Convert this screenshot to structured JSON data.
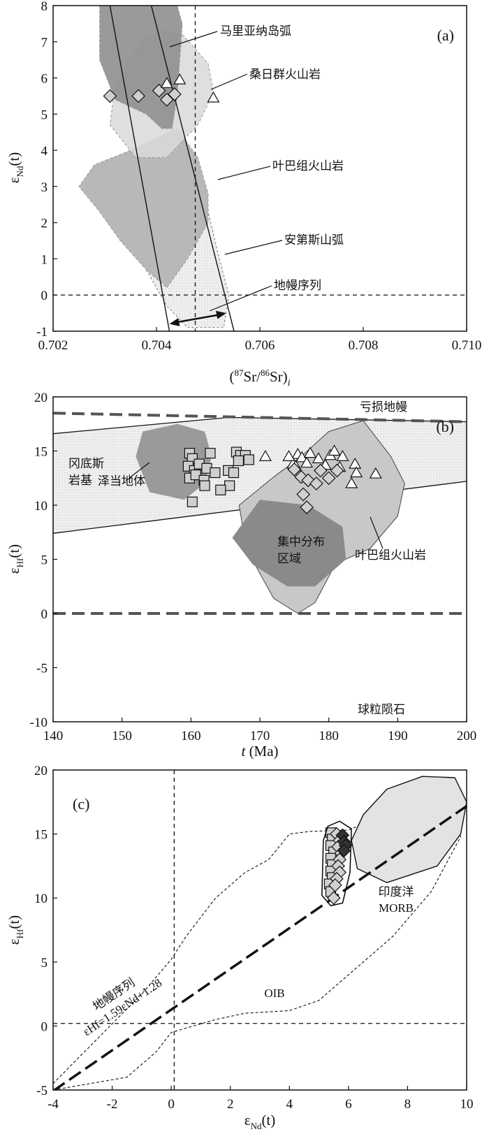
{
  "chart_data": [
    {
      "id": "a",
      "type": "scatter",
      "panel_label": "(a)",
      "xlim": [
        0.702,
        0.71
      ],
      "ylim": [
        -1,
        8
      ],
      "xticks": [
        0.702,
        0.704,
        0.706,
        0.708,
        0.71
      ],
      "yticks": [
        -1,
        0,
        1,
        2,
        3,
        4,
        5,
        6,
        7,
        8
      ],
      "xtick_labels": [
        "0.702",
        "0.704",
        "0.706",
        "0.708",
        "0.710"
      ],
      "ytick_labels": [
        "-1",
        "0",
        "1",
        "2",
        "3",
        "4",
        "5",
        "6",
        "7",
        "8"
      ],
      "xlabel": {
        "open": "(",
        "sup1": "87",
        "mid": "Sr/",
        "sup2": "86",
        "close": "Sr)",
        "sub": "i"
      },
      "ylabel": {
        "main": "ε",
        "sub": "Nd",
        "tail": "(t)"
      },
      "reference_lines": {
        "y": 0,
        "x": 0.70475
      },
      "mantle_array": {
        "line1": [
          [
            0.70425,
            -1
          ],
          [
            0.7031,
            8
          ]
        ],
        "line2": [
          [
            0.7055,
            -1
          ],
          [
            0.7039,
            8
          ]
        ],
        "arrow": [
          [
            0.70425,
            -0.8
          ],
          [
            0.70535,
            -0.5
          ]
        ]
      },
      "fields": [
        {
          "name": "马里亚纳岛弧",
          "color": "#8f8f8f",
          "polygon": [
            [
              0.7029,
              8
            ],
            [
              0.7044,
              8
            ],
            [
              0.7045,
              7.5
            ],
            [
              0.7044,
              5.5
            ],
            [
              0.7043,
              4.6
            ],
            [
              0.7041,
              4.6
            ],
            [
              0.7038,
              5.0
            ],
            [
              0.7032,
              5.4
            ],
            [
              0.7029,
              6.5
            ]
          ]
        },
        {
          "name": "桑日群火山岩",
          "color": "#d9d9d9",
          "polygon": [
            [
              0.7037,
              7.0
            ],
            [
              0.7041,
              7.3
            ],
            [
              0.7045,
              7.2
            ],
            [
              0.705,
              6.4
            ],
            [
              0.7051,
              5.6
            ],
            [
              0.7048,
              4.7
            ],
            [
              0.7042,
              3.8
            ],
            [
              0.7036,
              3.8
            ],
            [
              0.7031,
              4.7
            ],
            [
              0.7032,
              5.8
            ]
          ]
        },
        {
          "name": "叶巴组火山岩",
          "color": "#b8b8b8",
          "polygon": [
            [
              0.7044,
              4.6
            ],
            [
              0.7048,
              3.8
            ],
            [
              0.705,
              2.8
            ],
            [
              0.705,
              2.0
            ],
            [
              0.7046,
              1.0
            ],
            [
              0.7042,
              0.2
            ],
            [
              0.7038,
              0.7
            ],
            [
              0.7033,
              1.5
            ],
            [
              0.7029,
              2.3
            ],
            [
              0.7025,
              3.0
            ],
            [
              0.7028,
              3.6
            ],
            [
              0.7035,
              4.0
            ],
            [
              0.7041,
              4.4
            ]
          ]
        },
        {
          "name": "安第斯山弧",
          "color": "#ebebeb",
          "polygon": [
            [
              0.7043,
              5.2
            ],
            [
              0.7048,
              3.5
            ],
            [
              0.7052,
              1.1
            ],
            [
              0.7054,
              0
            ],
            [
              0.7053,
              -0.9
            ],
            [
              0.7046,
              -0.9
            ],
            [
              0.7042,
              -0.3
            ],
            [
              0.7038,
              0.7
            ],
            [
              0.7038,
              1.7
            ],
            [
              0.704,
              3.5
            ]
          ]
        }
      ],
      "series": [
        {
          "name": "",
          "marker": "diamond",
          "points": [
            [
              0.7031,
              5.5
            ],
            [
              0.70365,
              5.5
            ],
            [
              0.70405,
              5.65
            ],
            [
              0.7042,
              5.4
            ],
            [
              0.70435,
              5.55
            ]
          ]
        },
        {
          "name": "",
          "marker": "triangle",
          "points": [
            [
              0.7042,
              5.85
            ],
            [
              0.70445,
              5.95
            ],
            [
              0.7051,
              5.45
            ]
          ]
        }
      ],
      "annotations": [
        "马里亚纳岛弧",
        "桑日群火山岩",
        "叶巴组火山岩",
        "安第斯山弧",
        "地幔序列"
      ]
    },
    {
      "id": "b",
      "type": "scatter",
      "panel_label": "(b)",
      "xlim": [
        140,
        200
      ],
      "ylim": [
        -10,
        20
      ],
      "xticks": [
        140,
        150,
        160,
        170,
        180,
        190,
        200
      ],
      "yticks": [
        -10,
        -5,
        0,
        5,
        10,
        15,
        20
      ],
      "xtick_labels": [
        "140",
        "150",
        "160",
        "170",
        "180",
        "190",
        "200"
      ],
      "ytick_labels": [
        "-10",
        "-5",
        "0",
        "5",
        "10",
        "15",
        "20"
      ],
      "xlabel": {
        "main": "t",
        "tail": " (Ma)"
      },
      "ylabel": {
        "main": "ε",
        "sub": "Hf",
        "tail": "(t)"
      },
      "reference_lines": {
        "depleted_mantle": [
          [
            140,
            18.5
          ],
          [
            200,
            17.7
          ]
        ],
        "chondrite": 0
      },
      "envelope": [
        [
          140,
          16.6
        ],
        [
          165.5,
          18.1
        ],
        [
          200,
          17.7
        ],
        [
          200,
          12.2
        ],
        [
          140,
          7.4
        ]
      ],
      "fields": [
        {
          "name": "泽当地体",
          "color": "#9a9a9a",
          "polygon": [
            [
              152,
              14.5
            ],
            [
              153,
              16.8
            ],
            [
              158,
              17.5
            ],
            [
              162,
              16.8
            ],
            [
              163,
              14.5
            ],
            [
              162,
              12.0
            ],
            [
              159,
              10.5
            ],
            [
              154,
              11.2
            ]
          ]
        },
        {
          "name": "叶巴组火山岩",
          "color": "#c8c8c8",
          "polygon": [
            [
              185,
              17.8
            ],
            [
              189,
              14.5
            ],
            [
              191,
              12
            ],
            [
              190,
              9
            ],
            [
              186,
              6
            ],
            [
              181,
              4.6
            ],
            [
              178,
              1
            ],
            [
              175.5,
              0
            ],
            [
              172,
              1.4
            ],
            [
              168,
              6
            ],
            [
              167,
              10
            ],
            [
              172,
              12.6
            ],
            [
              176,
              14.5
            ],
            [
              180,
              16.8
            ]
          ]
        },
        {
          "name": "集中分布区域",
          "color": "#8a8a8a",
          "polygon": [
            [
              170,
              10.5
            ],
            [
              177,
              10
            ],
            [
              182,
              8
            ],
            [
              182.5,
              5
            ],
            [
              178,
              2.5
            ],
            [
              174,
              2.5
            ],
            [
              169,
              4.5
            ],
            [
              166,
              7
            ]
          ]
        }
      ],
      "series": [
        {
          "name": "",
          "marker": "square",
          "points": [
            [
              159.8,
              14.8
            ],
            [
              160.2,
              14.3
            ],
            [
              159.6,
              13.6
            ],
            [
              160.5,
              13.2
            ],
            [
              159.8,
              12.5
            ],
            [
              160.7,
              12.8
            ],
            [
              161.2,
              13.8
            ],
            [
              162.3,
              13.4
            ],
            [
              161.9,
              12.3
            ],
            [
              162.8,
              14.8
            ],
            [
              163.5,
              13.0
            ],
            [
              160.2,
              10.3
            ],
            [
              162.0,
              11.8
            ],
            [
              165.4,
              13.2
            ],
            [
              166.2,
              13.0
            ],
            [
              165.6,
              11.8
            ],
            [
              166.6,
              14.9
            ],
            [
              167.2,
              14.6
            ],
            [
              167.9,
              14.6
            ],
            [
              168.4,
              14.2
            ],
            [
              166.9,
              14.1
            ],
            [
              164.3,
              11.4
            ]
          ]
        },
        {
          "name": "",
          "marker": "triangle",
          "points": [
            [
              170.8,
              14.5
            ],
            [
              174.8,
              13.8
            ],
            [
              175.5,
              14.7
            ],
            [
              176.1,
              14.4
            ],
            [
              176.8,
              13.9
            ],
            [
              177.3,
              14.8
            ],
            [
              178.5,
              14.3
            ],
            [
              179.5,
              13.7
            ],
            [
              180.2,
              14.6
            ],
            [
              180.8,
              15.0
            ],
            [
              181.6,
              13.5
            ],
            [
              182.0,
              14.5
            ],
            [
              183.3,
              12.0
            ],
            [
              183.8,
              13.8
            ],
            [
              184.0,
              13.0
            ],
            [
              186.8,
              12.9
            ],
            [
              175.2,
              13.6
            ],
            [
              174.2,
              14.5
            ]
          ]
        },
        {
          "name": "",
          "marker": "diamond",
          "points": [
            [
              175.0,
              13.3
            ],
            [
              176.0,
              12.6
            ],
            [
              177.0,
              12.3
            ],
            [
              178.2,
              12.0
            ],
            [
              178.8,
              13.2
            ],
            [
              180.0,
              12.5
            ],
            [
              176.3,
              11.0
            ],
            [
              176.8,
              9.8
            ],
            [
              181.2,
              13.2
            ]
          ]
        }
      ],
      "annotations": [
        "亏损地幔",
        "冈底斯",
        "岩基",
        "泽当地体",
        "集中分布",
        "区域",
        "叶巴组火山岩",
        "球粒陨石"
      ]
    },
    {
      "id": "c",
      "type": "scatter",
      "panel_label": "(c)",
      "xlim": [
        -4,
        10
      ],
      "ylim": [
        -5,
        20
      ],
      "xticks": [
        -4,
        -2,
        0,
        2,
        4,
        6,
        8,
        10
      ],
      "yticks": [
        -5,
        0,
        5,
        10,
        15,
        20
      ],
      "xtick_labels": [
        "-4",
        "-2",
        "0",
        "2",
        "4",
        "6",
        "8",
        "10"
      ],
      "ytick_labels": [
        "-5",
        "0",
        "5",
        "10",
        "15",
        "20"
      ],
      "xlabel": {
        "main": "ε",
        "sub": "Nd",
        "tail": "(t)"
      },
      "ylabel": {
        "main": "ε",
        "sub": "Hf",
        "tail": "(t)"
      },
      "reference_lines": {
        "x": 0.1,
        "y": 0.2
      },
      "mantle_array": {
        "equation": "εHf = 1.59 εNd + 1.28",
        "x_range": [
          -4,
          10
        ]
      },
      "fields": [
        {
          "name": "印度洋 MORB",
          "color": "#e3e3e3",
          "polygon": [
            [
              6.1,
              14.5
            ],
            [
              6.5,
              16.5
            ],
            [
              7.3,
              18.5
            ],
            [
              8.5,
              19.5
            ],
            [
              9.6,
              19.4
            ],
            [
              10.0,
              17.5
            ],
            [
              9.8,
              15.0
            ],
            [
              9.0,
              12.5
            ],
            [
              7.3,
              11.2
            ],
            [
              6.3,
              12.3
            ]
          ]
        },
        {
          "name": "OIB",
          "style": "dashed-outline",
          "polygon": [
            [
              -4,
              -5
            ],
            [
              -1.5,
              -4
            ],
            [
              -0.5,
              -2
            ],
            [
              0,
              -0.5
            ],
            [
              1.5,
              0.5
            ],
            [
              2.5,
              1
            ],
            [
              4,
              1.2
            ],
            [
              5,
              2
            ],
            [
              6,
              4
            ],
            [
              7.5,
              7
            ],
            [
              8.8,
              10.5
            ],
            [
              9.8,
              14.8
            ],
            [
              9.0,
              17.0
            ],
            [
              8.2,
              17.1
            ],
            [
              7,
              16.3
            ],
            [
              6,
              15.3
            ],
            [
              4.7,
              15.2
            ],
            [
              4.0,
              15.0
            ],
            [
              3.3,
              13
            ],
            [
              2.5,
              12
            ],
            [
              1.5,
              10
            ],
            [
              0.5,
              7
            ],
            [
              0.0,
              5.2
            ],
            [
              -1,
              2.5
            ],
            [
              -2.5,
              -1
            ],
            [
              -4,
              -4.5
            ]
          ]
        },
        {
          "name": "",
          "style": "solid-outline",
          "polygon": [
            [
              5.15,
              14.5
            ],
            [
              5.3,
              15.6
            ],
            [
              5.7,
              16.0
            ],
            [
              6.1,
              15.4
            ],
            [
              6.05,
              12
            ],
            [
              5.8,
              9.6
            ],
            [
              5.4,
              9.4
            ],
            [
              5.1,
              10.2
            ]
          ]
        }
      ],
      "series": [
        {
          "name": "",
          "marker": "square",
          "points": [
            [
              5.4,
              15.1
            ],
            [
              5.45,
              14.6
            ],
            [
              5.4,
              14.1
            ],
            [
              5.5,
              13.6
            ],
            [
              5.4,
              13.1
            ],
            [
              5.45,
              12.6
            ],
            [
              5.4,
              12.1
            ],
            [
              5.45,
              11.6
            ],
            [
              5.35,
              11.1
            ],
            [
              5.4,
              10.5
            ]
          ]
        },
        {
          "name": "",
          "marker": "diamond",
          "points": [
            [
              5.6,
              15.0
            ],
            [
              5.7,
              14.5
            ],
            [
              5.65,
              14.0
            ],
            [
              5.75,
              13.5
            ],
            [
              5.7,
              13.0
            ],
            [
              5.65,
              12.5
            ],
            [
              5.7,
              12.0
            ],
            [
              5.6,
              11.5
            ],
            [
              5.55,
              11.0
            ],
            [
              5.5,
              10.0
            ]
          ]
        },
        {
          "name": "",
          "marker": "diamond-filled",
          "points": [
            [
              5.8,
              14.9
            ],
            [
              5.85,
              14.4
            ],
            [
              5.9,
              14.1
            ],
            [
              5.85,
              13.7
            ]
          ]
        }
      ],
      "annotations": [
        "印度洋",
        "MORB",
        "OIB",
        "地幔序列",
        "εHf=1.59εNd+1.28"
      ]
    }
  ]
}
